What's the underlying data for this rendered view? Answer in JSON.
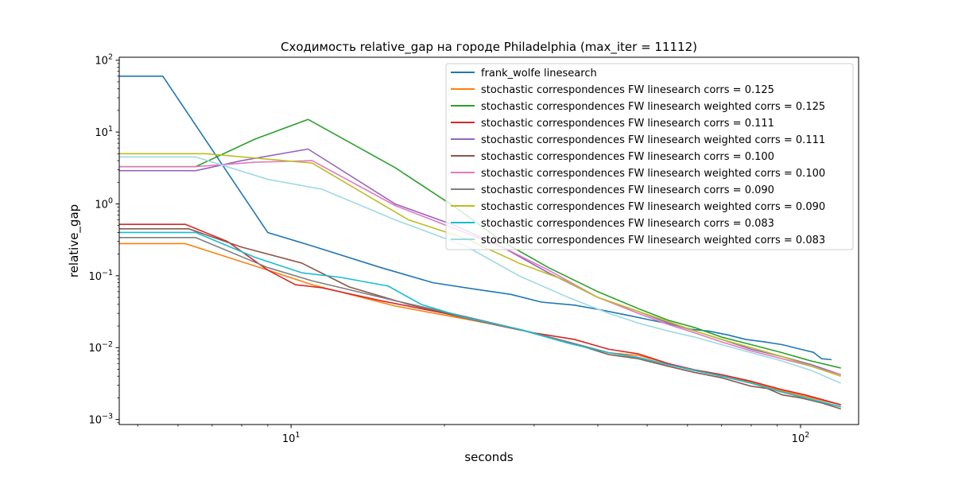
{
  "chart_data": {
    "type": "line",
    "title": "Сходимость relative_gap на городе Philadelphia  (max_iter = 11112)",
    "xlabel": "seconds",
    "ylabel": "relative_gap",
    "xscale": "log",
    "yscale": "log",
    "xlim": [
      4.6,
      130
    ],
    "ylim": [
      0.00085,
      110
    ],
    "x_ticks": [
      {
        "value": 10,
        "label": "10",
        "exp": "1"
      },
      {
        "value": 100,
        "label": "10",
        "exp": "2"
      }
    ],
    "y_ticks": [
      {
        "value": 0.001,
        "label": "10",
        "exp": "−3"
      },
      {
        "value": 0.01,
        "label": "10",
        "exp": "−2"
      },
      {
        "value": 0.1,
        "label": "10",
        "exp": "−1"
      },
      {
        "value": 1,
        "label": "10",
        "exp": "0"
      },
      {
        "value": 10,
        "label": "10",
        "exp": "1"
      },
      {
        "value": 100,
        "label": "10",
        "exp": "2"
      }
    ],
    "grid": false,
    "legend_position": "top-right",
    "series": [
      {
        "name": "frank_wolfe linesearch",
        "color": "#1f77b4",
        "points": [
          [
            4.6,
            60
          ],
          [
            5.6,
            60
          ],
          [
            9.0,
            0.4
          ],
          [
            11,
            0.26
          ],
          [
            15,
            0.13
          ],
          [
            19,
            0.08
          ],
          [
            23,
            0.065
          ],
          [
            27,
            0.055
          ],
          [
            31,
            0.043
          ],
          [
            36,
            0.039
          ],
          [
            41,
            0.033
          ],
          [
            46,
            0.028
          ],
          [
            51,
            0.024
          ],
          [
            56,
            0.021
          ],
          [
            61,
            0.018
          ],
          [
            66,
            0.017
          ],
          [
            72,
            0.015
          ],
          [
            78,
            0.013
          ],
          [
            85,
            0.012
          ],
          [
            92,
            0.011
          ],
          [
            100,
            0.0095
          ],
          [
            106,
            0.0086
          ],
          [
            110,
            0.007
          ],
          [
            115,
            0.0068
          ]
        ]
      },
      {
        "name": "stochastic correspondences FW linesearch corrs = 0.125",
        "color": "#ff7f0e",
        "points": [
          [
            4.6,
            0.28
          ],
          [
            6.2,
            0.28
          ],
          [
            9.0,
            0.12
          ],
          [
            11,
            0.075
          ],
          [
            16,
            0.038
          ],
          [
            22,
            0.025
          ],
          [
            28,
            0.018
          ],
          [
            35,
            0.012
          ],
          [
            42,
            0.0085
          ],
          [
            48,
            0.0078
          ],
          [
            55,
            0.006
          ],
          [
            62,
            0.0048
          ],
          [
            70,
            0.004
          ],
          [
            80,
            0.0033
          ],
          [
            92,
            0.0025
          ],
          [
            105,
            0.002
          ],
          [
            120,
            0.0016
          ]
        ]
      },
      {
        "name": "stochastic correspondences FW linesearch weighted corrs = 0.125",
        "color": "#2ca02c",
        "points": [
          [
            4.6,
            3.3
          ],
          [
            6.5,
            3.3
          ],
          [
            8.5,
            8
          ],
          [
            10.8,
            15
          ],
          [
            16,
            3.2
          ],
          [
            21,
            0.9
          ],
          [
            26,
            0.3
          ],
          [
            32,
            0.13
          ],
          [
            40,
            0.06
          ],
          [
            48,
            0.035
          ],
          [
            55,
            0.024
          ],
          [
            62,
            0.019
          ],
          [
            70,
            0.014
          ],
          [
            80,
            0.011
          ],
          [
            92,
            0.0085
          ],
          [
            105,
            0.0065
          ],
          [
            120,
            0.0052
          ]
        ]
      },
      {
        "name": "stochastic correspondences FW linesearch corrs = 0.111",
        "color": "#d62728",
        "points": [
          [
            4.6,
            0.52
          ],
          [
            6.2,
            0.52
          ],
          [
            7.5,
            0.3
          ],
          [
            9.0,
            0.12
          ],
          [
            10.2,
            0.075
          ],
          [
            11.5,
            0.068
          ],
          [
            15,
            0.045
          ],
          [
            20,
            0.03
          ],
          [
            25,
            0.021
          ],
          [
            30,
            0.016
          ],
          [
            36,
            0.013
          ],
          [
            42,
            0.0095
          ],
          [
            48,
            0.0082
          ],
          [
            55,
            0.006
          ],
          [
            62,
            0.0049
          ],
          [
            70,
            0.0042
          ],
          [
            80,
            0.0034
          ],
          [
            92,
            0.0026
          ],
          [
            102,
            0.0022
          ],
          [
            110,
            0.0019
          ],
          [
            120,
            0.0016
          ]
        ]
      },
      {
        "name": "stochastic correspondences FW linesearch weighted corrs = 0.111",
        "color": "#9467bd",
        "points": [
          [
            4.6,
            2.9
          ],
          [
            6.5,
            2.9
          ],
          [
            8.0,
            4
          ],
          [
            10.8,
            5.8
          ],
          [
            16,
            1.0
          ],
          [
            21,
            0.5
          ],
          [
            26,
            0.25
          ],
          [
            32,
            0.11
          ],
          [
            40,
            0.05
          ],
          [
            48,
            0.032
          ],
          [
            55,
            0.022
          ],
          [
            62,
            0.017
          ],
          [
            70,
            0.013
          ],
          [
            80,
            0.0095
          ],
          [
            92,
            0.0075
          ],
          [
            105,
            0.0058
          ],
          [
            120,
            0.0042
          ]
        ]
      },
      {
        "name": "stochastic correspondences FW linesearch corrs = 0.100",
        "color": "#8c564b",
        "points": [
          [
            4.6,
            0.45
          ],
          [
            6.3,
            0.45
          ],
          [
            8.0,
            0.25
          ],
          [
            10.5,
            0.15
          ],
          [
            13,
            0.07
          ],
          [
            17,
            0.04
          ],
          [
            22,
            0.026
          ],
          [
            28,
            0.018
          ],
          [
            35,
            0.012
          ],
          [
            42,
            0.008
          ],
          [
            48,
            0.007
          ],
          [
            55,
            0.0055
          ],
          [
            62,
            0.0045
          ],
          [
            70,
            0.0038
          ],
          [
            80,
            0.0029
          ],
          [
            86,
            0.0027
          ],
          [
            92,
            0.0022
          ],
          [
            100,
            0.002
          ],
          [
            110,
            0.0017
          ],
          [
            120,
            0.0014
          ]
        ]
      },
      {
        "name": "stochastic correspondences FW linesearch weighted corrs = 0.100",
        "color": "#e377c2",
        "points": [
          [
            4.6,
            3.3
          ],
          [
            6.5,
            3.3
          ],
          [
            8.5,
            3.8
          ],
          [
            11,
            4
          ],
          [
            16,
            0.95
          ],
          [
            21,
            0.45
          ],
          [
            26,
            0.25
          ],
          [
            32,
            0.12
          ],
          [
            40,
            0.05
          ],
          [
            48,
            0.03
          ],
          [
            55,
            0.021
          ],
          [
            62,
            0.016
          ],
          [
            70,
            0.012
          ],
          [
            80,
            0.009
          ],
          [
            92,
            0.007
          ],
          [
            105,
            0.0055
          ],
          [
            120,
            0.0042
          ]
        ]
      },
      {
        "name": "stochastic correspondences FW linesearch corrs = 0.090",
        "color": "#7f7f7f",
        "points": [
          [
            4.6,
            0.34
          ],
          [
            6.5,
            0.34
          ],
          [
            9.0,
            0.13
          ],
          [
            11,
            0.085
          ],
          [
            16,
            0.045
          ],
          [
            22,
            0.027
          ],
          [
            28,
            0.018
          ],
          [
            35,
            0.012
          ],
          [
            42,
            0.0085
          ],
          [
            48,
            0.0073
          ],
          [
            55,
            0.0058
          ],
          [
            62,
            0.0048
          ],
          [
            70,
            0.004
          ],
          [
            80,
            0.0032
          ],
          [
            92,
            0.0024
          ],
          [
            105,
            0.0019
          ],
          [
            120,
            0.0015
          ]
        ]
      },
      {
        "name": "stochastic correspondences FW linesearch weighted corrs = 0.090",
        "color": "#bcbd22",
        "points": [
          [
            4.6,
            5
          ],
          [
            6.8,
            5
          ],
          [
            11,
            3.7
          ],
          [
            17,
            0.6
          ],
          [
            22,
            0.33
          ],
          [
            28,
            0.15
          ],
          [
            34,
            0.09
          ],
          [
            40,
            0.05
          ],
          [
            48,
            0.032
          ],
          [
            55,
            0.023
          ],
          [
            62,
            0.017
          ],
          [
            70,
            0.013
          ],
          [
            80,
            0.01
          ],
          [
            92,
            0.0075
          ],
          [
            105,
            0.0055
          ],
          [
            120,
            0.004
          ]
        ]
      },
      {
        "name": "stochastic correspondences FW linesearch corrs = 0.083",
        "color": "#17becf",
        "points": [
          [
            4.6,
            0.4
          ],
          [
            6.5,
            0.4
          ],
          [
            8.5,
            0.18
          ],
          [
            10.5,
            0.11
          ],
          [
            12.5,
            0.095
          ],
          [
            15.5,
            0.072
          ],
          [
            18,
            0.04
          ],
          [
            22,
            0.026
          ],
          [
            28,
            0.018
          ],
          [
            35,
            0.0115
          ],
          [
            42,
            0.0085
          ],
          [
            48,
            0.0072
          ],
          [
            55,
            0.0058
          ],
          [
            62,
            0.0048
          ],
          [
            70,
            0.004
          ],
          [
            80,
            0.0032
          ],
          [
            92,
            0.0024
          ],
          [
            105,
            0.0019
          ],
          [
            120,
            0.0015
          ]
        ]
      },
      {
        "name": "stochastic correspondences FW linesearch weighted corrs = 0.083",
        "color": "#9edae5",
        "points": [
          [
            4.6,
            4.5
          ],
          [
            6.5,
            4.5
          ],
          [
            9,
            2.2
          ],
          [
            11.5,
            1.6
          ],
          [
            16,
            0.6
          ],
          [
            22,
            0.26
          ],
          [
            28,
            0.1
          ],
          [
            35,
            0.05
          ],
          [
            42,
            0.03
          ],
          [
            48,
            0.022
          ],
          [
            55,
            0.017
          ],
          [
            62,
            0.014
          ],
          [
            70,
            0.011
          ],
          [
            80,
            0.0085
          ],
          [
            92,
            0.0065
          ],
          [
            105,
            0.0048
          ],
          [
            120,
            0.0032
          ]
        ]
      }
    ]
  }
}
